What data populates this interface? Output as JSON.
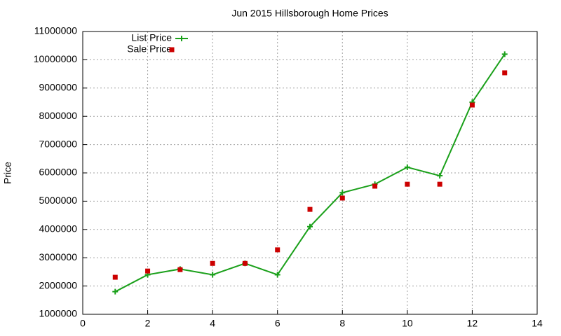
{
  "chart_data": {
    "type": "line",
    "title": "Jun 2015 Hillsborough Home Prices",
    "y_label": "Price",
    "x": [
      1,
      2,
      3,
      4,
      5,
      6,
      7,
      8,
      9,
      10,
      11,
      12,
      13
    ],
    "series": [
      {
        "name": "List Price",
        "color": "#1aa01a",
        "mode": "lines+markers",
        "marker": "plus",
        "values": [
          1800000,
          2400000,
          2600000,
          2400000,
          2800000,
          2400000,
          4100000,
          5300000,
          5600000,
          6200000,
          5900000,
          8500000,
          10200000
        ]
      },
      {
        "name": "Sale Price",
        "color": "#cc0000",
        "mode": "markers",
        "marker": "square",
        "values": [
          2310000,
          2530000,
          2580000,
          2800000,
          2800000,
          3280000,
          4710000,
          5110000,
          5530000,
          5600000,
          5600000,
          8400000,
          9540000
        ]
      }
    ],
    "xlim": [
      0,
      14
    ],
    "xticks": [
      0,
      2,
      4,
      6,
      8,
      10,
      12,
      14
    ],
    "ylim": [
      1000000,
      11000000
    ],
    "yticks": [
      1000000,
      2000000,
      3000000,
      4000000,
      5000000,
      6000000,
      7000000,
      8000000,
      9000000,
      10000000,
      11000000
    ],
    "grid": true,
    "legend": "top-left"
  }
}
